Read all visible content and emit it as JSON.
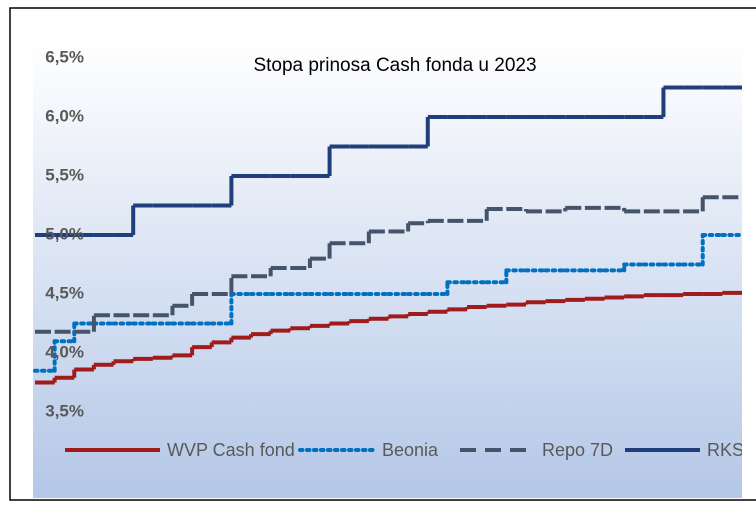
{
  "chart_data": {
    "type": "line",
    "step": true,
    "title": "Stopa prinosa Cash fonda u 2023",
    "categories": [
      null,
      null,
      null,
      null,
      null,
      null,
      null,
      null,
      null,
      null,
      null,
      null,
      null,
      null,
      null,
      null,
      null,
      null,
      null,
      null,
      null,
      null,
      null,
      null,
      null,
      null,
      null,
      null,
      null,
      null,
      null,
      null,
      null,
      null,
      null,
      null
    ],
    "series": [
      {
        "name": "WVP Cash fond",
        "color": "#a01c1c",
        "dash": "solid",
        "values": [
          3.75,
          3.79,
          3.86,
          3.9,
          3.93,
          3.95,
          3.96,
          3.98,
          4.05,
          4.09,
          4.13,
          4.16,
          4.19,
          4.21,
          4.23,
          4.25,
          4.27,
          4.29,
          4.31,
          4.33,
          4.35,
          4.37,
          4.39,
          4.4,
          4.41,
          4.43,
          4.44,
          4.45,
          4.46,
          4.47,
          4.48,
          4.49,
          4.49,
          4.5,
          4.5,
          4.51
        ]
      },
      {
        "name": "Beonia",
        "color": "#0070c0",
        "dash": "dotted",
        "values": [
          3.85,
          4.1,
          4.25,
          4.25,
          4.25,
          4.25,
          4.25,
          4.25,
          4.25,
          4.25,
          4.5,
          4.5,
          4.5,
          4.5,
          4.5,
          4.5,
          4.5,
          4.5,
          4.5,
          4.5,
          4.5,
          4.6,
          4.6,
          4.6,
          4.7,
          4.7,
          4.7,
          4.7,
          4.7,
          4.7,
          4.75,
          4.75,
          4.75,
          4.75,
          5.0,
          5.0
        ]
      },
      {
        "name": "Repo 7D",
        "color": "#44546a",
        "dash": "dashed",
        "values": [
          4.18,
          4.18,
          4.18,
          4.32,
          4.32,
          4.32,
          4.32,
          4.4,
          4.5,
          4.5,
          4.65,
          4.65,
          4.72,
          4.72,
          4.8,
          4.93,
          4.93,
          5.03,
          5.03,
          5.1,
          5.12,
          5.12,
          5.12,
          5.22,
          5.22,
          5.2,
          5.2,
          5.23,
          5.23,
          5.23,
          5.2,
          5.2,
          5.2,
          5.2,
          5.32,
          5.32
        ]
      },
      {
        "name": "RKS",
        "color": "#203f7a",
        "dash": "solid",
        "values": [
          5.0,
          5.0,
          5.0,
          5.0,
          5.0,
          5.25,
          5.25,
          5.25,
          5.25,
          5.25,
          5.5,
          5.5,
          5.5,
          5.5,
          5.5,
          5.75,
          5.75,
          5.75,
          5.75,
          5.75,
          6.0,
          6.0,
          6.0,
          6.0,
          6.0,
          6.0,
          6.0,
          6.0,
          6.0,
          6.0,
          6.0,
          6.0,
          6.25,
          6.25,
          6.25,
          6.25
        ]
      }
    ],
    "ylim": [
      3.5,
      6.5
    ],
    "yticks": [
      {
        "value": 3.5,
        "label": "3,5%"
      },
      {
        "value": 4.0,
        "label": "4,0%"
      },
      {
        "value": 4.5,
        "label": "4,5%"
      },
      {
        "value": 5.0,
        "label": "5,0%"
      },
      {
        "value": 5.5,
        "label": "5,5%"
      },
      {
        "value": 6.0,
        "label": "6,0%"
      },
      {
        "value": 6.5,
        "label": "6,5%"
      }
    ],
    "grid": false,
    "legend": "bottom"
  }
}
